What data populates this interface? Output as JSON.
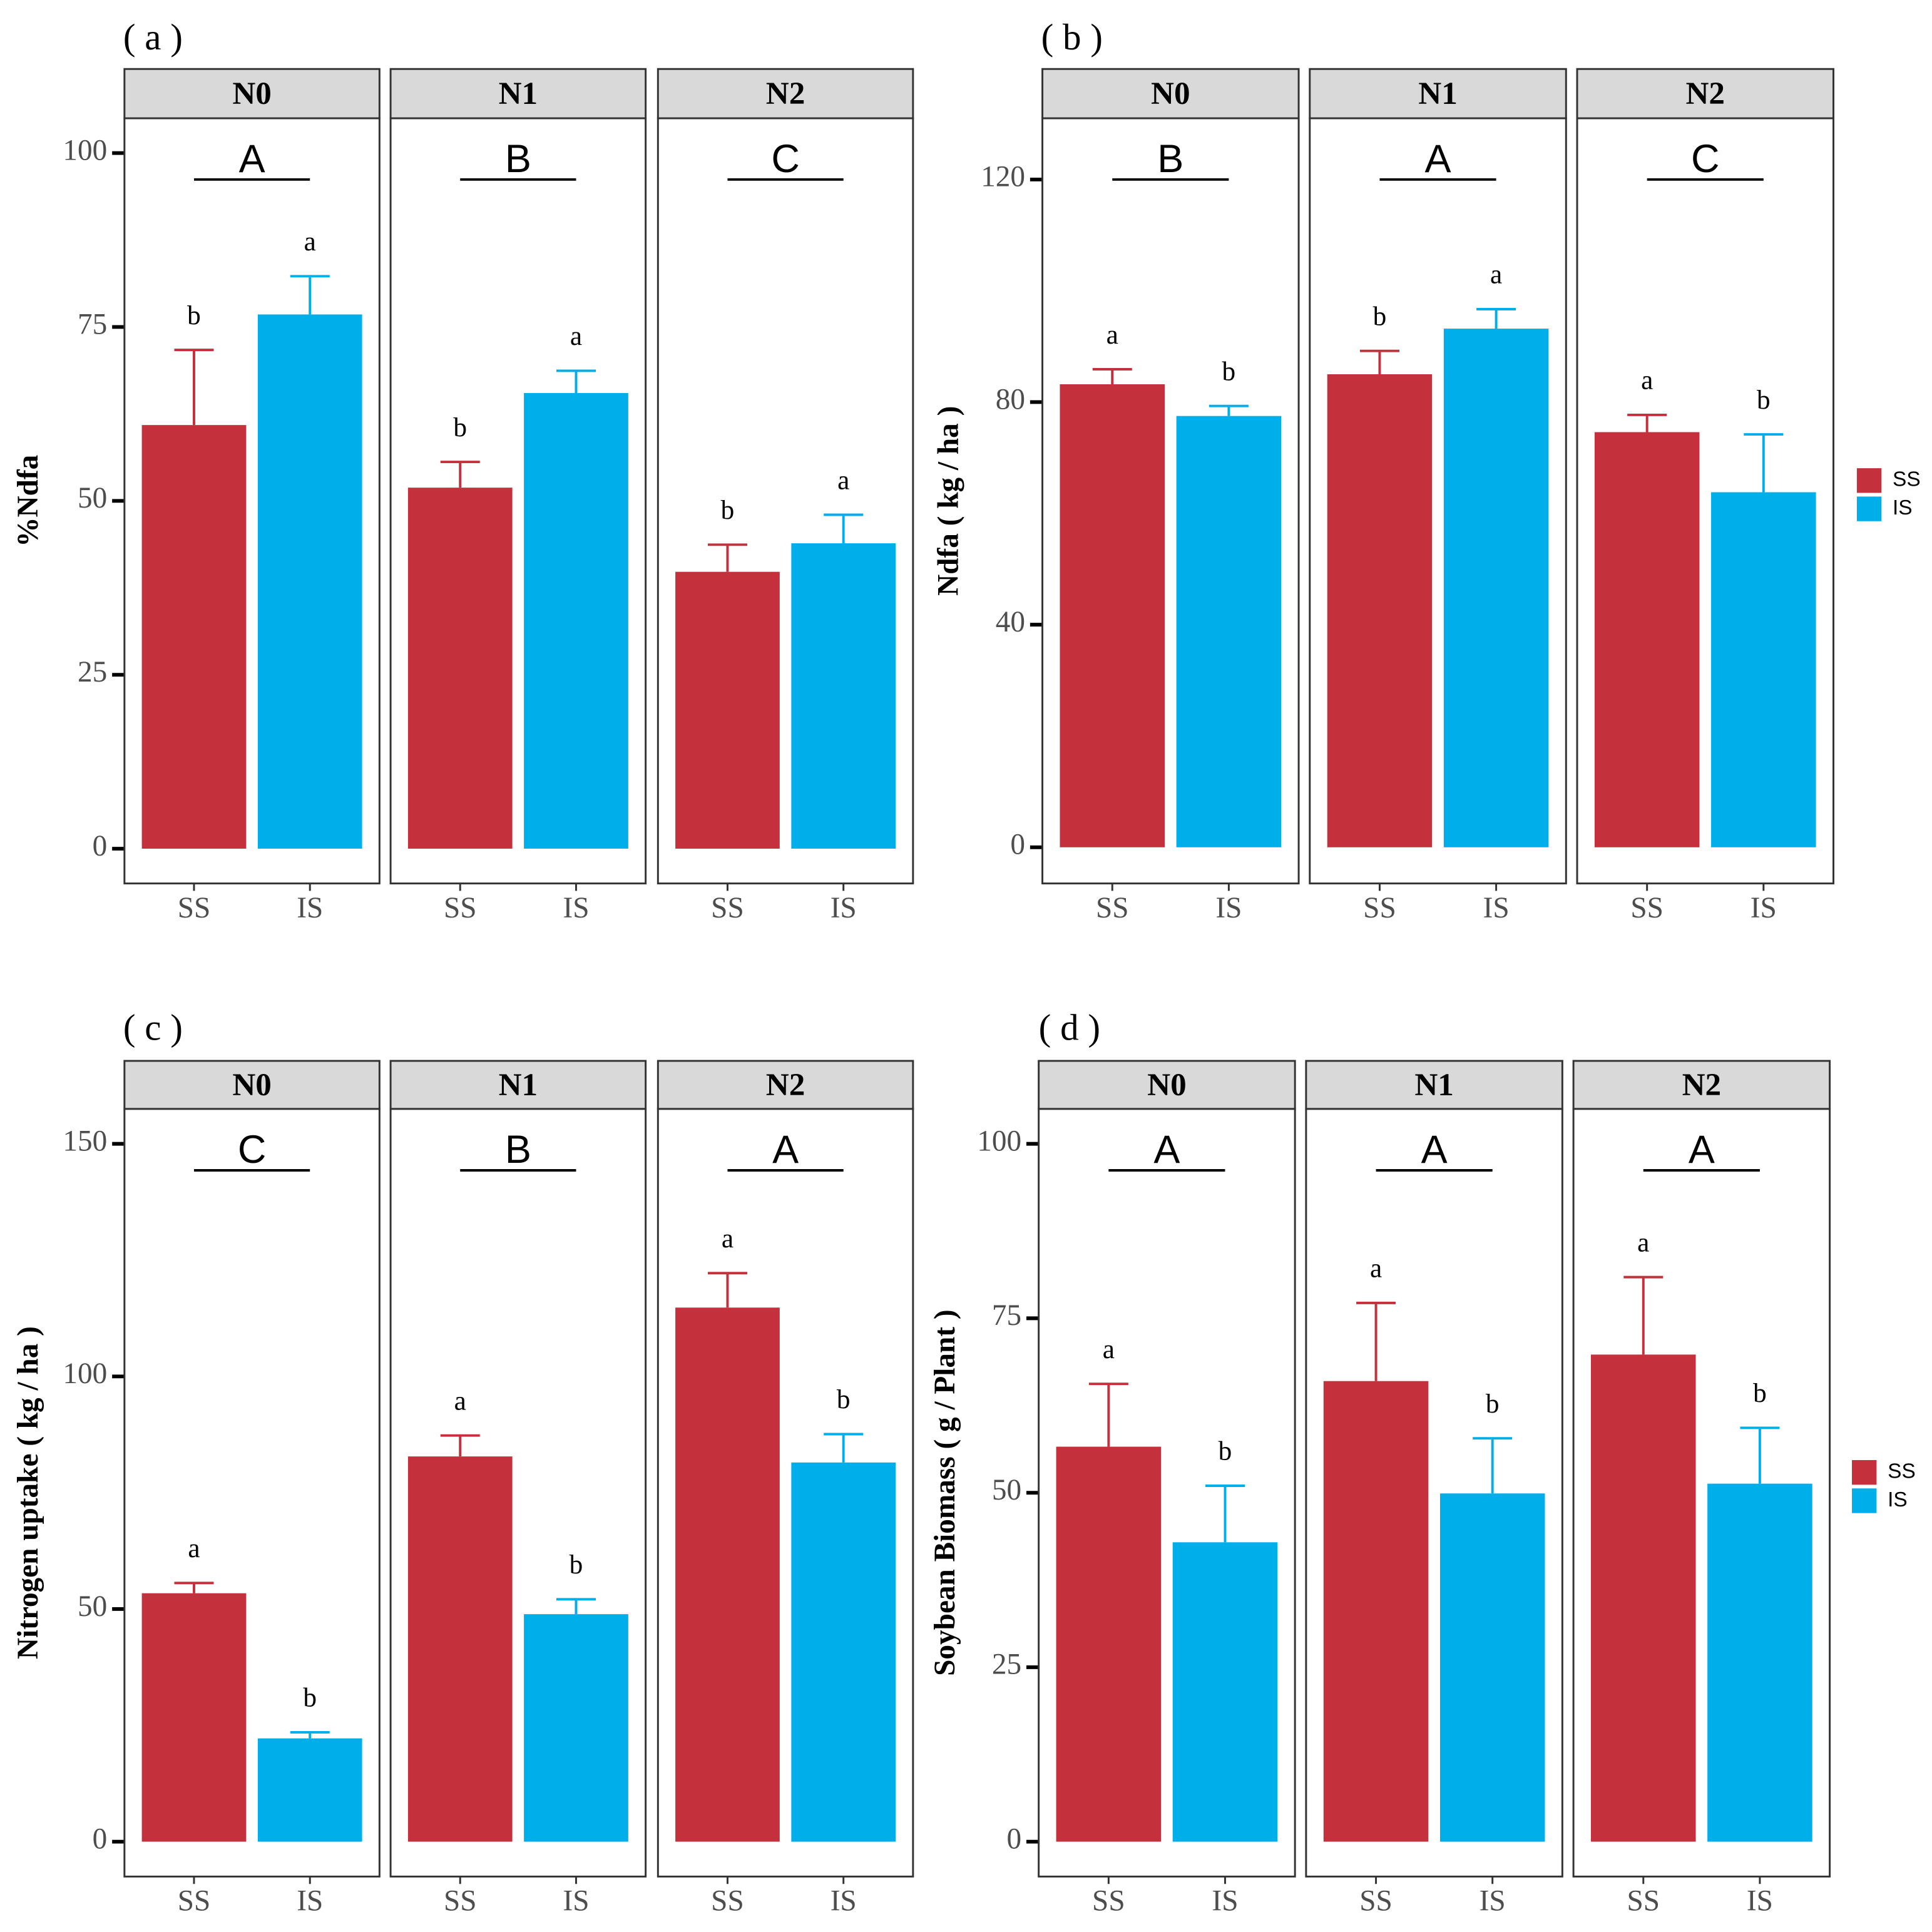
{
  "chart_data": [
    {
      "type": "bar",
      "panel_label": "( a )",
      "ylabel": "%Ndfa",
      "ylim": [
        -5,
        105
      ],
      "yticks": [
        0,
        25,
        50,
        75,
        100
      ],
      "facets": [
        "N0",
        "N1",
        "N2"
      ],
      "facet_labels": [
        "A",
        "B",
        "C"
      ],
      "legend": false,
      "series": [
        {
          "name": "SS",
          "color": "#c4303c",
          "values": [
            60.9,
            51.9,
            39.8
          ],
          "errors": [
            10.8,
            3.7,
            3.9
          ],
          "letters": [
            "b",
            "b",
            "b"
          ]
        },
        {
          "name": "IS",
          "color": "#00aeea",
          "values": [
            76.8,
            65.5,
            43.9
          ],
          "errors": [
            5.5,
            3.2,
            4.1
          ],
          "letters": [
            "a",
            "a",
            "a"
          ]
        }
      ]
    },
    {
      "type": "bar",
      "panel_label": "( b )",
      "ylabel": "Ndfa ( kg / ha )",
      "ylim": [
        -6.5,
        131
      ],
      "yticks": [
        0,
        40,
        80,
        120
      ],
      "facets": [
        "N0",
        "N1",
        "N2"
      ],
      "facet_labels": [
        "B",
        "A",
        "C"
      ],
      "legend": true,
      "series": [
        {
          "name": "SS",
          "color": "#c4303c",
          "values": [
            83.2,
            85.0,
            74.6
          ],
          "errors": [
            2.7,
            4.2,
            3.1
          ],
          "letters": [
            "a",
            "b",
            "a"
          ]
        },
        {
          "name": "IS",
          "color": "#00aeea",
          "values": [
            77.5,
            93.2,
            63.8
          ],
          "errors": [
            1.8,
            3.5,
            10.4
          ],
          "letters": [
            "b",
            "a",
            "b"
          ]
        }
      ]
    },
    {
      "type": "bar",
      "panel_label": "( c )",
      "ylabel": "Nitrogen uptake ( kg / ha )",
      "ylim": [
        -7.5,
        157.5
      ],
      "yticks": [
        0,
        50,
        100,
        150
      ],
      "facets": [
        "N0",
        "N1",
        "N2"
      ],
      "facet_labels": [
        "C",
        "B",
        "A"
      ],
      "legend": false,
      "series": [
        {
          "name": "SS",
          "color": "#c4303c",
          "values": [
            53.4,
            82.8,
            114.8
          ],
          "errors": [
            2.2,
            4.5,
            7.4
          ],
          "letters": [
            "a",
            "a",
            "a"
          ]
        },
        {
          "name": "IS",
          "color": "#00aeea",
          "values": [
            22.2,
            48.9,
            81.5
          ],
          "errors": [
            1.3,
            3.2,
            6.1
          ],
          "letters": [
            "b",
            "b",
            "b"
          ]
        }
      ]
    },
    {
      "type": "bar",
      "panel_label": "( d )",
      "ylabel": "Soybean Biomass ( g / Plant )",
      "ylim": [
        -5,
        105
      ],
      "yticks": [
        0,
        25,
        50,
        75,
        100
      ],
      "facets": [
        "N0",
        "N1",
        "N2"
      ],
      "facet_labels": [
        "A",
        "A",
        "A"
      ],
      "legend": true,
      "series": [
        {
          "name": "SS",
          "color": "#c4303c",
          "values": [
            56.6,
            66.0,
            69.8
          ],
          "errors": [
            9.0,
            11.2,
            11.1
          ],
          "letters": [
            "a",
            "a",
            "a"
          ]
        },
        {
          "name": "IS",
          "color": "#00aeea",
          "values": [
            42.9,
            49.9,
            51.3
          ],
          "errors": [
            8.1,
            7.9,
            8.0
          ],
          "letters": [
            "b",
            "b",
            "b"
          ]
        }
      ]
    }
  ]
}
